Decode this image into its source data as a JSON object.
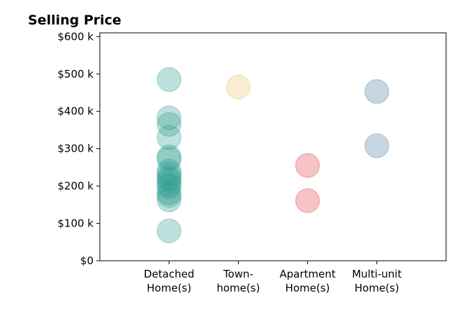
{
  "chart_data": {
    "type": "scatter",
    "title": "Selling Price",
    "categories": [
      "Detached Home(s)",
      "Town- home(s)",
      "Apartment Home(s)",
      "Multi-unit Home(s)"
    ],
    "category_labels": [
      [
        "Detached",
        "Home(s)"
      ],
      [
        "Town-",
        "home(s)"
      ],
      [
        "Apartment",
        "Home(s)"
      ],
      [
        "Multi-unit",
        "Home(s)"
      ]
    ],
    "yticks": [
      {
        "value": 0,
        "label": "$0"
      },
      {
        "value": 100000,
        "label": "$100 k"
      },
      {
        "value": 200000,
        "label": "$200 k"
      },
      {
        "value": 300000,
        "label": "$300 k"
      },
      {
        "value": 400000,
        "label": "$400 k"
      },
      {
        "value": 500000,
        "label": "$500 k"
      },
      {
        "value": 600000,
        "label": "$600 k"
      }
    ],
    "ylim": [
      0,
      610000
    ],
    "xlim": [
      -1,
      4
    ],
    "grid": false,
    "marker_opacity": 0.3,
    "series": [
      {
        "category": "Detached Home(s)",
        "color": "#2a9d8f",
        "values": [
          485000,
          383000,
          365000,
          330000,
          278000,
          272000,
          240000,
          232000,
          222000,
          215000,
          205000,
          198000,
          182000,
          175000,
          163000,
          80000
        ]
      },
      {
        "category": "Town- home(s)",
        "color": "#e9c46a",
        "values": [
          465000
        ]
      },
      {
        "category": "Apartment Home(s)",
        "color": "#e63946",
        "values": [
          255000,
          161000
        ]
      },
      {
        "category": "Multi-unit Home(s)",
        "color": "#457b9d",
        "values": [
          453000,
          308000
        ]
      }
    ]
  }
}
